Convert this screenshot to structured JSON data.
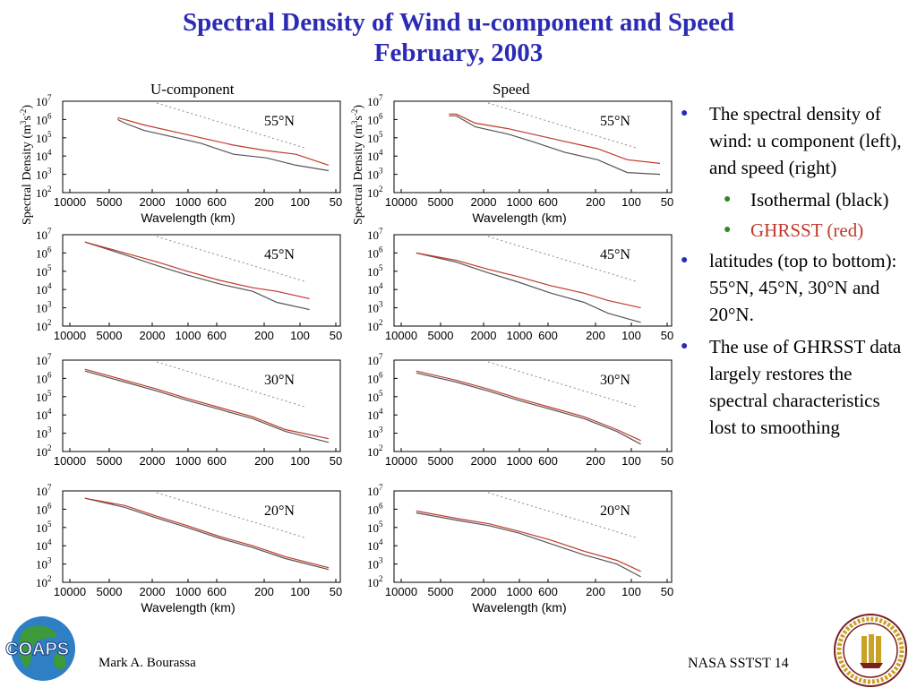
{
  "title_line1": "Spectral Density of Wind u-component and Speed",
  "title_line2": "February, 2003",
  "panel_headers": {
    "left": "U-component",
    "right": "Speed"
  },
  "bullets": [
    {
      "text": "The spectral density of wind: u component (left), and speed (right)",
      "sub": [
        {
          "text": "Isothermal (black)",
          "color": "#000000"
        },
        {
          "text": "GHRSST (red)",
          "color": "#c0392b"
        }
      ]
    },
    {
      "text": "latitudes (top to bottom): 55°N, 45°N, 30°N and 20°N.",
      "sub": []
    },
    {
      "text": "The use of GHRSST data largely restores the spectral characteristics lost to smoothing",
      "sub": []
    }
  ],
  "footer": {
    "author": "Mark A. Bourassa",
    "right": "NASA SSTST  14",
    "logo_text": "COAPS"
  },
  "colors": {
    "title": "#2b2bb5",
    "isothermal": "#555555",
    "ghrsst": "#c0392b",
    "reference": "#888888"
  },
  "chart_data": [
    {
      "type": "line",
      "column": "U-component",
      "latitude": "55°N",
      "xlabel": "Wavelength  (km)",
      "ylabel": "Spectral Density (m3s-2)",
      "x_ticks": [
        "10000",
        "5000",
        "2000",
        "1000",
        "600",
        "200",
        "100",
        "50"
      ],
      "y_ticks": [
        "10^2",
        "10^3",
        "10^4",
        "10^5",
        "10^6",
        "10^7"
      ],
      "x": [
        3500,
        3000,
        2000,
        1000,
        600,
        300,
        150,
        80,
        40
      ],
      "series": [
        {
          "name": "Isothermal (black)",
          "values": [
            6,
            5.8,
            5.4,
            5.0,
            4.7,
            4.1,
            3.9,
            3.5,
            3.2
          ]
        },
        {
          "name": "GHRSST (red)",
          "values": [
            6.1,
            6.0,
            5.7,
            5.3,
            5.0,
            4.6,
            4.3,
            4.1,
            3.5
          ]
        }
      ]
    },
    {
      "type": "line",
      "column": "Speed",
      "latitude": "55°N",
      "xlabel": "Wavelength (km)",
      "ylabel": "Spectral Density (m3s-2)",
      "x_ticks": [
        "10000",
        "5000",
        "2000",
        "1000",
        "600",
        "200",
        "100",
        "50"
      ],
      "y_ticks": [
        "10^2",
        "10^3",
        "10^4",
        "10^5",
        "10^6",
        "10^7"
      ],
      "x": [
        3500,
        3000,
        2000,
        1000,
        600,
        300,
        150,
        80,
        40
      ],
      "series": [
        {
          "name": "Isothermal (black)",
          "values": [
            6.2,
            6.2,
            5.6,
            5.2,
            4.8,
            4.2,
            3.8,
            3.1,
            3.0
          ]
        },
        {
          "name": "GHRSST (red)",
          "values": [
            6.3,
            6.3,
            5.8,
            5.5,
            5.2,
            4.8,
            4.4,
            3.8,
            3.6
          ]
        }
      ]
    },
    {
      "type": "line",
      "column": "U-component",
      "latitude": "45°N",
      "x_ticks": [
        "10000",
        "5000",
        "2000",
        "1000",
        "600",
        "200",
        "100",
        "50"
      ],
      "y_ticks": [
        "10^2",
        "10^3",
        "10^4",
        "10^5",
        "10^6",
        "10^7"
      ],
      "x": [
        7000,
        3000,
        1500,
        800,
        400,
        200,
        120,
        60
      ],
      "series": [
        {
          "name": "Isothermal (black)",
          "values": [
            6.6,
            5.9,
            5.3,
            4.8,
            4.3,
            3.9,
            3.3,
            2.9
          ]
        },
        {
          "name": "GHRSST (red)",
          "values": [
            6.6,
            6.0,
            5.5,
            5.0,
            4.5,
            4.1,
            3.9,
            3.5
          ]
        }
      ]
    },
    {
      "type": "line",
      "column": "Speed",
      "latitude": "45°N",
      "x_ticks": [
        "10000",
        "5000",
        "2000",
        "1000",
        "600",
        "200",
        "100",
        "50"
      ],
      "y_ticks": [
        "10^2",
        "10^3",
        "10^4",
        "10^5",
        "10^6",
        "10^7"
      ],
      "x": [
        7000,
        3000,
        1500,
        800,
        400,
        200,
        120,
        60
      ],
      "series": [
        {
          "name": "Isothermal (black)",
          "values": [
            6.0,
            5.5,
            4.9,
            4.4,
            3.8,
            3.3,
            2.7,
            2.2
          ]
        },
        {
          "name": "GHRSST (red)",
          "values": [
            6.0,
            5.6,
            5.1,
            4.7,
            4.2,
            3.8,
            3.4,
            3.0
          ]
        }
      ]
    },
    {
      "type": "line",
      "column": "U-component",
      "latitude": "30°N",
      "x_ticks": [
        "10000",
        "5000",
        "2000",
        "1000",
        "600",
        "200",
        "100",
        "50"
      ],
      "y_ticks": [
        "10^2",
        "10^3",
        "10^4",
        "10^5",
        "10^6",
        "10^7"
      ],
      "x": [
        7000,
        3000,
        1500,
        800,
        400,
        200,
        100,
        40
      ],
      "series": [
        {
          "name": "Isothermal (black)",
          "values": [
            6.4,
            5.8,
            5.3,
            4.8,
            4.3,
            3.8,
            3.1,
            2.5
          ]
        },
        {
          "name": "GHRSST (red)",
          "values": [
            6.5,
            5.9,
            5.4,
            4.9,
            4.4,
            3.9,
            3.2,
            2.7
          ]
        }
      ]
    },
    {
      "type": "line",
      "column": "Speed",
      "latitude": "30°N",
      "x_ticks": [
        "10000",
        "5000",
        "2000",
        "1000",
        "600",
        "200",
        "100",
        "50"
      ],
      "y_ticks": [
        "10^2",
        "10^3",
        "10^4",
        "10^5",
        "10^6",
        "10^7"
      ],
      "x": [
        7000,
        3000,
        1500,
        800,
        400,
        200,
        100,
        60
      ],
      "series": [
        {
          "name": "Isothermal (black)",
          "values": [
            6.3,
            5.8,
            5.3,
            4.8,
            4.3,
            3.8,
            3.1,
            2.4
          ]
        },
        {
          "name": "GHRSST (red)",
          "values": [
            6.4,
            5.9,
            5.4,
            4.9,
            4.4,
            3.9,
            3.2,
            2.6
          ]
        }
      ]
    },
    {
      "type": "line",
      "column": "U-component",
      "latitude": "20°N",
      "xlabel": "Wavelength (km)",
      "x_ticks": [
        "10000",
        "5000",
        "2000",
        "1000",
        "600",
        "200",
        "100",
        "50"
      ],
      "y_ticks": [
        "10^2",
        "10^3",
        "10^4",
        "10^5",
        "10^6",
        "10^7"
      ],
      "x": [
        7000,
        3000,
        1500,
        800,
        400,
        200,
        100,
        40
      ],
      "series": [
        {
          "name": "Isothermal (black)",
          "values": [
            6.6,
            6.1,
            5.5,
            5.0,
            4.4,
            3.9,
            3.3,
            2.7
          ]
        },
        {
          "name": "GHRSST (red)",
          "values": [
            6.6,
            6.2,
            5.6,
            5.1,
            4.5,
            4.0,
            3.4,
            2.8
          ]
        }
      ]
    },
    {
      "type": "line",
      "column": "Speed",
      "latitude": "20°N",
      "xlabel": "Wavelength (km)",
      "x_ticks": [
        "10000",
        "5000",
        "2000",
        "1000",
        "600",
        "200",
        "100",
        "50"
      ],
      "y_ticks": [
        "10^2",
        "10^3",
        "10^4",
        "10^5",
        "10^6",
        "10^7"
      ],
      "x": [
        7000,
        3000,
        1500,
        800,
        400,
        200,
        100,
        60
      ],
      "series": [
        {
          "name": "Isothermal (black)",
          "values": [
            5.8,
            5.4,
            5.1,
            4.7,
            4.1,
            3.5,
            3.0,
            2.3
          ]
        },
        {
          "name": "GHRSST (red)",
          "values": [
            5.9,
            5.5,
            5.2,
            4.8,
            4.3,
            3.7,
            3.2,
            2.6
          ]
        }
      ]
    }
  ]
}
